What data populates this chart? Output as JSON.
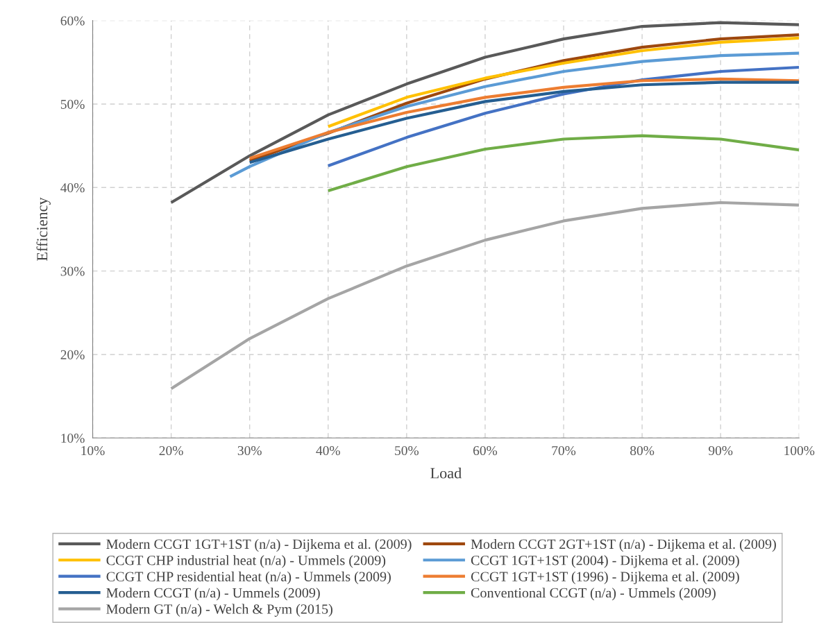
{
  "chart_data": {
    "type": "line",
    "xlabel": "Load",
    "ylabel": "Efficiency",
    "grid": true,
    "legend": "bottom",
    "marker": "none",
    "line_style": "solid",
    "xlim": [
      10,
      100
    ],
    "ylim": [
      10,
      60
    ],
    "xticks": [
      {
        "value": 10,
        "label": "10%"
      },
      {
        "value": 20,
        "label": "20%"
      },
      {
        "value": 30,
        "label": "30%"
      },
      {
        "value": 40,
        "label": "40%"
      },
      {
        "value": 50,
        "label": "50%"
      },
      {
        "value": 60,
        "label": "60%"
      },
      {
        "value": 70,
        "label": "70%"
      },
      {
        "value": 80,
        "label": "80%"
      },
      {
        "value": 90,
        "label": "90%"
      },
      {
        "value": 100,
        "label": "100%"
      }
    ],
    "yticks": [
      {
        "value": 10,
        "label": "10%"
      },
      {
        "value": 20,
        "label": "20%"
      },
      {
        "value": 30,
        "label": "30%"
      },
      {
        "value": 40,
        "label": "40%"
      },
      {
        "value": 50,
        "label": "50%"
      },
      {
        "value": 60,
        "label": "60%"
      }
    ],
    "series": [
      {
        "name": "Modern CCGT 1GT+1ST (n/a) - Dijkema et al. (2009)",
        "color": "#595959",
        "x": [
          20,
          30,
          40,
          50,
          60,
          70,
          80,
          90,
          100
        ],
        "values": [
          38.2,
          43.8,
          48.7,
          52.4,
          55.6,
          57.8,
          59.3,
          59.75,
          59.5
        ]
      },
      {
        "name": "Modern CCGT 2GT+1ST (n/a) - Dijkema et al. (2009)",
        "color": "#9e480e",
        "x": [
          30,
          40,
          50,
          60,
          70,
          80,
          90,
          100
        ],
        "values": [
          43.2,
          46.5,
          50.1,
          53.0,
          55.2,
          56.8,
          57.8,
          58.3
        ]
      },
      {
        "name": "CCGT CHP industrial heat (n/a) - Ummels (2009)",
        "color": "#ffc000",
        "x": [
          40,
          50,
          60,
          70,
          80,
          90,
          100
        ],
        "values": [
          47.3,
          50.8,
          53.1,
          54.9,
          56.4,
          57.4,
          57.9
        ]
      },
      {
        "name": "CCGT 1GT+1ST (2004) - Dijkema et al. (2009)",
        "color": "#5b9bd5",
        "x": [
          27.5,
          30,
          40,
          50,
          60,
          70,
          80,
          90,
          100
        ],
        "values": [
          41.3,
          42.5,
          46.6,
          49.7,
          52.1,
          53.9,
          55.1,
          55.8,
          56.1
        ]
      },
      {
        "name": "CCGT CHP residential heat (n/a) - Ummels (2009)",
        "color": "#4472c4",
        "x": [
          40,
          50,
          60,
          70,
          80,
          90,
          100
        ],
        "values": [
          42.6,
          46.0,
          48.9,
          51.2,
          52.9,
          53.9,
          54.4
        ]
      },
      {
        "name": "CCGT 1GT+1ST (1996) - Dijkema et al. (2009)",
        "color": "#ed7d31",
        "x": [
          30,
          40,
          50,
          60,
          70,
          80,
          90,
          100
        ],
        "values": [
          43.5,
          46.6,
          49.0,
          50.8,
          52.0,
          52.8,
          53.0,
          52.8
        ]
      },
      {
        "name": "Modern CCGT (n/a) - Ummels (2009)",
        "color": "#255e91",
        "x": [
          30,
          40,
          50,
          60,
          70,
          80,
          90,
          100
        ],
        "values": [
          43.0,
          45.8,
          48.3,
          50.3,
          51.5,
          52.3,
          52.6,
          52.6
        ]
      },
      {
        "name": "Conventional CCGT (n/a) - Ummels (2009)",
        "color": "#70ad47",
        "x": [
          40,
          50,
          60,
          70,
          80,
          90,
          100
        ],
        "values": [
          39.6,
          42.5,
          44.6,
          45.8,
          46.2,
          45.8,
          44.5
        ]
      },
      {
        "name": "Modern GT (n/a) - Welch & Pym (2015)",
        "color": "#a5a5a5",
        "x": [
          20,
          30,
          40,
          50,
          60,
          70,
          80,
          90,
          100
        ],
        "values": [
          15.9,
          21.9,
          26.7,
          30.6,
          33.7,
          36.0,
          37.5,
          38.2,
          37.9
        ]
      }
    ]
  }
}
